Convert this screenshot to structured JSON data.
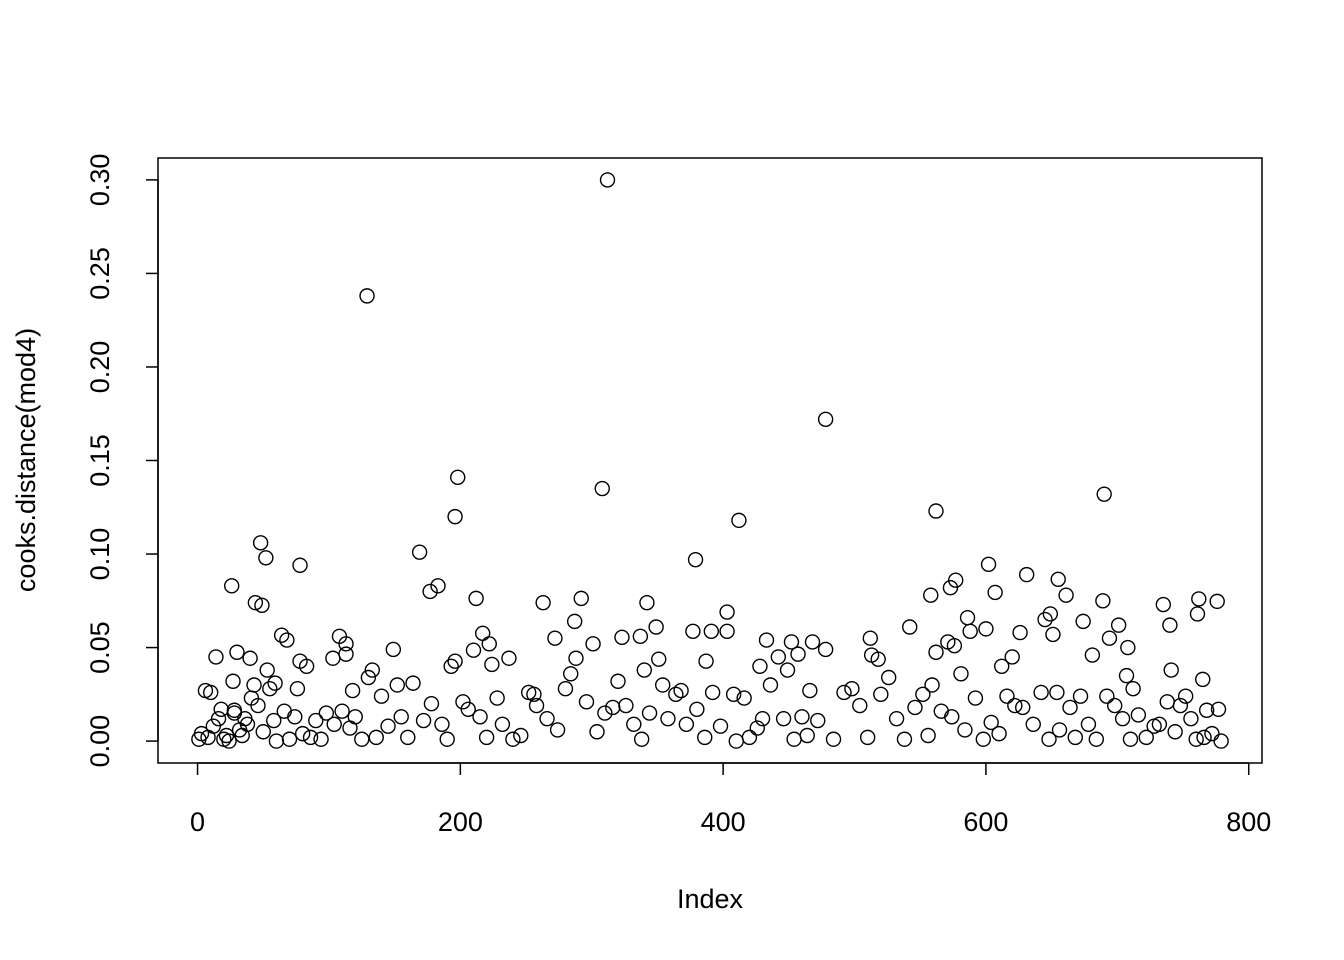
{
  "chart_data": {
    "type": "scatter",
    "x_label": "Index",
    "y_label": "cooks.distance(mod4)",
    "x": [
      312,
      129,
      478,
      198,
      308,
      690,
      562,
      196,
      412,
      48,
      169,
      52,
      379,
      78,
      602,
      631,
      655,
      577,
      26,
      183,
      573,
      177,
      607,
      558,
      661,
      212,
      292,
      762,
      689,
      776,
      263,
      342,
      44,
      49,
      735,
      403,
      649,
      761,
      586,
      645,
      287,
      674,
      740,
      701,
      349,
      542,
      600,
      377,
      588,
      391,
      403,
      626,
      217,
      651,
      64,
      337,
      108,
      323,
      272,
      512,
      694,
      68,
      433,
      113,
      468,
      452,
      571,
      301,
      222,
      576,
      708,
      149,
      210,
      478,
      30,
      562,
      113,
      457,
      14,
      40,
      103,
      288,
      513,
      681,
      442,
      237,
      351,
      518,
      620,
      196,
      78,
      387,
      428,
      83,
      193,
      224,
      612,
      53,
      133,
      340,
      741,
      449,
      581,
      707,
      765,
      27,
      320,
      59,
      559,
      712,
      76,
      118,
      466,
      654,
      256,
      408,
      6,
      28,
      768,
      777,
      1,
      3,
      8,
      10,
      12,
      16,
      18,
      20,
      22,
      24,
      28,
      32,
      34,
      36,
      38,
      41,
      43,
      46,
      50,
      55,
      58,
      60,
      66,
      70,
      74,
      80,
      86,
      90,
      94,
      98,
      104,
      110,
      116,
      120,
      125,
      130,
      136,
      140,
      145,
      152,
      155,
      160,
      164,
      172,
      178,
      186,
      190,
      202,
      206,
      215,
      220,
      228,
      232,
      240,
      246,
      252,
      258,
      266,
      274,
      280,
      284,
      296,
      304,
      310,
      316,
      326,
      332,
      338,
      344,
      354,
      358,
      364,
      368,
      372,
      380,
      386,
      392,
      398,
      410,
      416,
      420,
      426,
      430,
      436,
      446,
      454,
      460,
      464,
      472,
      484,
      492,
      498,
      504,
      510,
      520,
      526,
      532,
      538,
      546,
      552,
      556,
      566,
      574,
      584,
      592,
      598,
      604,
      610,
      616,
      622,
      628,
      636,
      642,
      648,
      656,
      664,
      668,
      672,
      678,
      684,
      692,
      698,
      704,
      710,
      716,
      722,
      728,
      732,
      738,
      744,
      748,
      752,
      756,
      760,
      766,
      772,
      779
    ],
    "values": [
      0.3,
      0.238,
      0.172,
      0.141,
      0.135,
      0.132,
      0.123,
      0.12,
      0.118,
      0.106,
      0.101,
      0.098,
      0.097,
      0.094,
      0.0945,
      0.089,
      0.0865,
      0.086,
      0.083,
      0.083,
      0.082,
      0.08,
      0.0795,
      0.078,
      0.078,
      0.0763,
      0.0763,
      0.076,
      0.075,
      0.0747,
      0.074,
      0.074,
      0.074,
      0.0726,
      0.073,
      0.069,
      0.068,
      0.068,
      0.066,
      0.065,
      0.064,
      0.064,
      0.062,
      0.062,
      0.061,
      0.061,
      0.06,
      0.0587,
      0.0587,
      0.0587,
      0.0587,
      0.058,
      0.0576,
      0.057,
      0.0566,
      0.056,
      0.056,
      0.0555,
      0.055,
      0.055,
      0.055,
      0.054,
      0.054,
      0.052,
      0.053,
      0.053,
      0.053,
      0.052,
      0.052,
      0.051,
      0.05,
      0.049,
      0.0486,
      0.049,
      0.0475,
      0.0475,
      0.0465,
      0.0465,
      0.045,
      0.0443,
      0.0443,
      0.0443,
      0.046,
      0.046,
      0.045,
      0.0443,
      0.0438,
      0.0438,
      0.045,
      0.0427,
      0.0427,
      0.0427,
      0.04,
      0.04,
      0.04,
      0.041,
      0.04,
      0.038,
      0.038,
      0.038,
      0.038,
      0.038,
      0.036,
      0.035,
      0.033,
      0.032,
      0.032,
      0.031,
      0.03,
      0.028,
      0.028,
      0.027,
      0.027,
      0.026,
      0.025,
      0.025,
      0.027,
      0.0165,
      0.0165,
      0.017,
      0.001,
      0.004,
      0.002,
      0.026,
      0.008,
      0.012,
      0.017,
      0.001,
      0.003,
      0,
      0.015,
      0.006,
      0.003,
      0.012,
      0.009,
      0.023,
      0.03,
      0.019,
      0.005,
      0.028,
      0.011,
      0,
      0.016,
      0.001,
      0.013,
      0.004,
      0.002,
      0.011,
      0.001,
      0.015,
      0.009,
      0.016,
      0.007,
      0.013,
      0.001,
      0.034,
      0.002,
      0.024,
      0.008,
      0.03,
      0.013,
      0.002,
      0.031,
      0.011,
      0.02,
      0.009,
      0.001,
      0.021,
      0.017,
      0.013,
      0.002,
      0.023,
      0.009,
      0.001,
      0.003,
      0.026,
      0.019,
      0.012,
      0.006,
      0.028,
      0.036,
      0.021,
      0.005,
      0.015,
      0.018,
      0.019,
      0.009,
      0.001,
      0.015,
      0.03,
      0.012,
      0.025,
      0.027,
      0.009,
      0.017,
      0.002,
      0.026,
      0.008,
      0,
      0.023,
      0.002,
      0.007,
      0.012,
      0.03,
      0.012,
      0.001,
      0.013,
      0.003,
      0.011,
      0.001,
      0.026,
      0.028,
      0.019,
      0.002,
      0.025,
      0.034,
      0.012,
      0.001,
      0.018,
      0.025,
      0.003,
      0.016,
      0.013,
      0.006,
      0.023,
      0.001,
      0.01,
      0.004,
      0.024,
      0.019,
      0.018,
      0.009,
      0.026,
      0.001,
      0.006,
      0.018,
      0.002,
      0.024,
      0.009,
      0.001,
      0.024,
      0.019,
      0.012,
      0.001,
      0.014,
      0.002,
      0.008,
      0.009,
      0.021,
      0.005,
      0.019,
      0.024,
      0.012,
      0.001,
      0.002,
      0.004,
      0
    ],
    "color": "#000000",
    "xlim": [
      -30.1,
      810.1
    ],
    "ylim": [
      -0.0117,
      0.3117
    ],
    "xticks": [
      0,
      200,
      400,
      600,
      800
    ],
    "yticks": [
      {
        "value": 0,
        "label": "0.00"
      },
      {
        "value": 0.05,
        "label": "0.05"
      },
      {
        "value": 0.1,
        "label": "0.10"
      },
      {
        "value": 0.15,
        "label": "0.15"
      },
      {
        "value": 0.2,
        "label": "0.20"
      },
      {
        "value": 0.25,
        "label": "0.25"
      },
      {
        "value": 0.3,
        "label": "0.30"
      }
    ],
    "grid": false
  }
}
